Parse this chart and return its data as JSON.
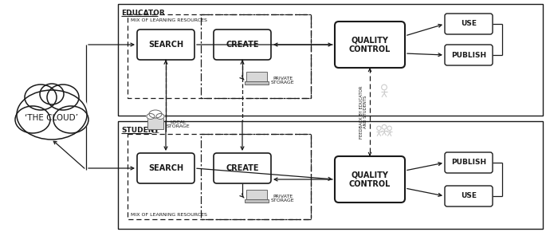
{
  "bg_color": "#ffffff",
  "border_color": "#1a1a1a",
  "box_fc": "#ffffff",
  "text_color": "#1a1a1a",
  "gray_icon": "#bbbbbb",
  "educator_label": "EDUCATOR",
  "student_label": "STUDENT",
  "cloud_label": "‘THE CLOUD’",
  "search_label": "SEARCH",
  "create_label": "CREATE",
  "qc_label": "QUALITY\nCONTROL",
  "use_label": "USE",
  "publish_label": "PUBLISH",
  "mix_label": "MIX OF LEARNING RESOURCES",
  "private_storage_label": "PRIVATE\nSTORAGE",
  "local_storage_label": "LOCAL\nSTORAGE",
  "feedback_label": "FEEDBACK BY EDUCATOR\nAND STUDENTS",
  "figsize": [
    6.85,
    2.91
  ],
  "dpi": 100
}
